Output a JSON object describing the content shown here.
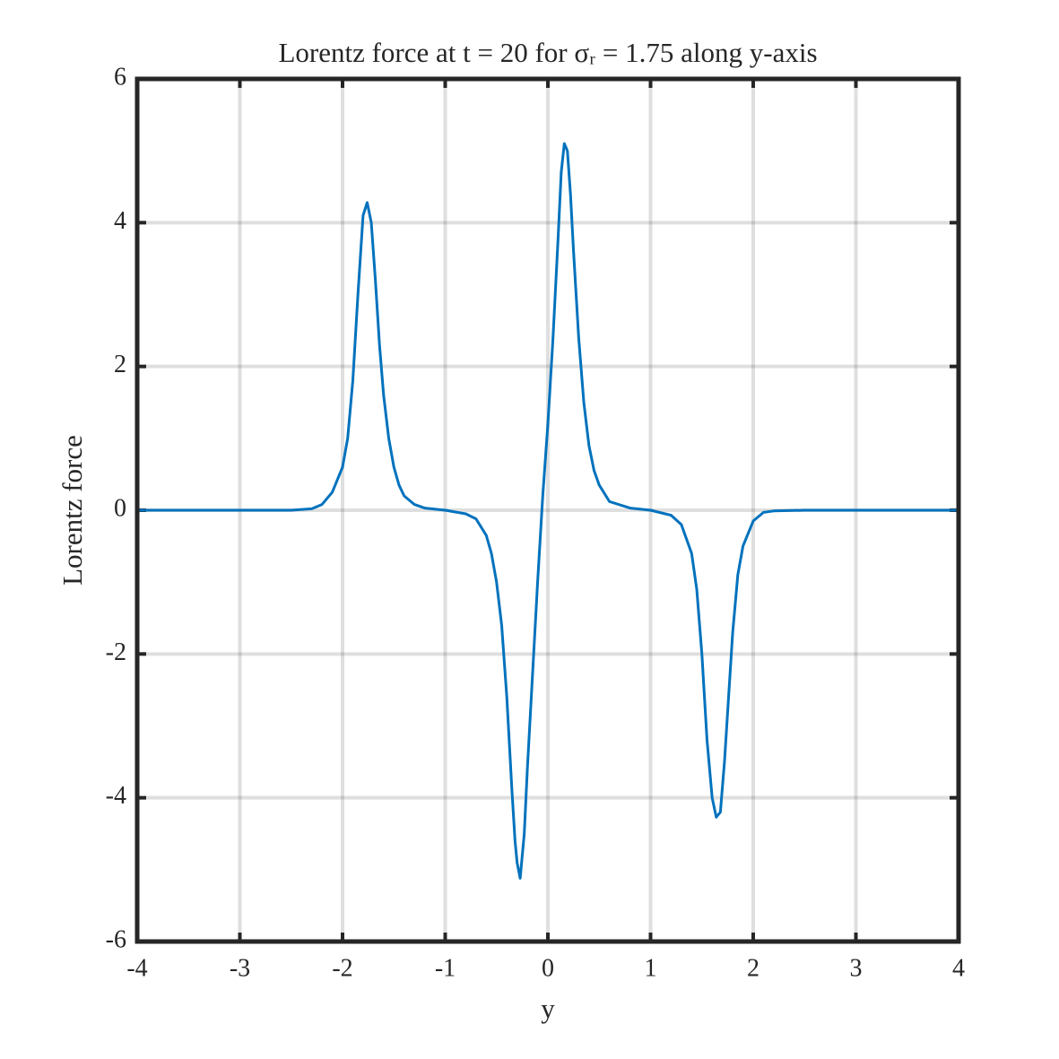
{
  "chart_data": {
    "type": "line",
    "title": "Lorentz force at t = 20 for σᵣ = 1.75 along y-axis",
    "x_label": "y",
    "y_label": "Lorentz force",
    "xlim": [
      -4,
      4
    ],
    "xticks": [
      -4,
      -3,
      -2,
      -1,
      0,
      1,
      2,
      3,
      4
    ],
    "ylim": [
      -6,
      6
    ],
    "yticks": [
      -6,
      -4,
      -2,
      0,
      2,
      4,
      6
    ],
    "grid": true,
    "series": [
      {
        "name": "Lorentz force",
        "color": "#0072bd",
        "x": [
          -4,
          -3.5,
          -3,
          -2.5,
          -2.3,
          -2.2,
          -2.1,
          -2.0,
          -1.95,
          -1.9,
          -1.85,
          -1.8,
          -1.76,
          -1.72,
          -1.68,
          -1.64,
          -1.6,
          -1.55,
          -1.5,
          -1.45,
          -1.4,
          -1.3,
          -1.2,
          -1.0,
          -0.8,
          -0.7,
          -0.6,
          -0.55,
          -0.5,
          -0.45,
          -0.4,
          -0.35,
          -0.32,
          -0.3,
          -0.27,
          -0.23,
          -0.2,
          -0.15,
          -0.1,
          -0.05,
          0,
          0.05,
          0.1,
          0.13,
          0.16,
          0.19,
          0.22,
          0.25,
          0.3,
          0.35,
          0.4,
          0.45,
          0.5,
          0.6,
          0.8,
          1.0,
          1.2,
          1.3,
          1.4,
          1.45,
          1.5,
          1.55,
          1.6,
          1.64,
          1.68,
          1.72,
          1.76,
          1.8,
          1.85,
          1.9,
          2.0,
          2.1,
          2.2,
          2.5,
          3,
          3.5,
          4
        ],
        "values": [
          0,
          0,
          0,
          0,
          0.02,
          0.08,
          0.25,
          0.6,
          1.0,
          1.8,
          3.0,
          4.1,
          4.28,
          4.0,
          3.2,
          2.3,
          1.6,
          1.0,
          0.6,
          0.35,
          0.2,
          0.08,
          0.03,
          0,
          -0.05,
          -0.12,
          -0.35,
          -0.6,
          -1.0,
          -1.6,
          -2.6,
          -3.9,
          -4.6,
          -4.9,
          -5.12,
          -4.5,
          -3.6,
          -2.3,
          -1.0,
          0.2,
          1.2,
          2.4,
          3.8,
          4.7,
          5.1,
          5.0,
          4.4,
          3.6,
          2.4,
          1.5,
          0.9,
          0.55,
          0.35,
          0.12,
          0.03,
          0,
          -0.07,
          -0.2,
          -0.6,
          -1.1,
          -2.0,
          -3.2,
          -4.0,
          -4.27,
          -4.2,
          -3.5,
          -2.6,
          -1.7,
          -0.9,
          -0.5,
          -0.15,
          -0.03,
          -0.01,
          0,
          0,
          0,
          0
        ]
      }
    ]
  }
}
